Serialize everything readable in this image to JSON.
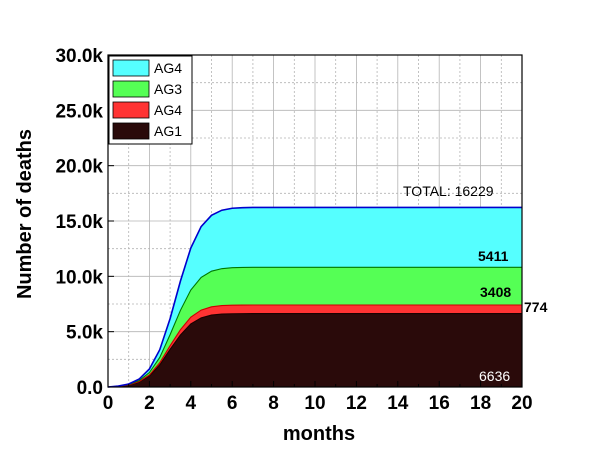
{
  "chart_data": {
    "type": "area",
    "stacked": true,
    "title": "",
    "xlabel": "months",
    "ylabel": "Number of deaths",
    "xlim": [
      0,
      20
    ],
    "ylim": [
      0,
      30000
    ],
    "x_ticks": [
      "0",
      "2",
      "4",
      "6",
      "8",
      "10",
      "12",
      "14",
      "16",
      "18",
      "20"
    ],
    "y_ticks": [
      "0.0",
      "5.0k",
      "10.0k",
      "15.0k",
      "20.0k",
      "25.0k",
      "30.0k"
    ],
    "grid": true,
    "legend_position": "top-left",
    "legend": [
      "AG4",
      "AG3",
      "AG4",
      "AG1"
    ],
    "x": [
      0,
      0.5,
      1,
      1.5,
      2,
      2.5,
      3,
      3.5,
      4,
      4.5,
      5,
      5.5,
      6,
      6.5,
      7,
      7.5,
      8,
      9,
      10,
      12,
      14,
      16,
      18,
      20
    ],
    "series": [
      {
        "name": "AG1",
        "color": "#2a0a0a",
        "final_value": 6636,
        "values": [
          0,
          60,
          180,
          450,
          1000,
          2000,
          3400,
          4700,
          5700,
          6250,
          6500,
          6590,
          6620,
          6630,
          6635,
          6636,
          6636,
          6636,
          6636,
          6636,
          6636,
          6636,
          6636,
          6636
        ]
      },
      {
        "name": "AG4",
        "color": "#ff3333",
        "final_value": 774,
        "values": [
          0,
          5,
          15,
          40,
          90,
          190,
          330,
          480,
          610,
          700,
          745,
          765,
          772,
          774,
          774,
          774,
          774,
          774,
          774,
          774,
          774,
          774,
          774,
          774
        ]
      },
      {
        "name": "AG3",
        "color": "#55ff55",
        "final_value": 3408,
        "values": [
          0,
          10,
          30,
          90,
          220,
          480,
          1000,
          1750,
          2450,
          2950,
          3220,
          3340,
          3390,
          3403,
          3407,
          3408,
          3408,
          3408,
          3408,
          3408,
          3408,
          3408,
          3408,
          3408
        ]
      },
      {
        "name": "AG4",
        "color": "#55ffff",
        "final_value": 5411,
        "values": [
          0,
          15,
          45,
          130,
          320,
          700,
          1450,
          2650,
          3800,
          4600,
          5050,
          5280,
          5370,
          5400,
          5408,
          5411,
          5411,
          5411,
          5411,
          5411,
          5411,
          5411,
          5411,
          5411
        ]
      }
    ],
    "annotations": {
      "total": "TOTAL: 16229",
      "ag4_top": "5411",
      "ag3": "3408",
      "ag4_red": "774",
      "ag1": "6636"
    }
  }
}
